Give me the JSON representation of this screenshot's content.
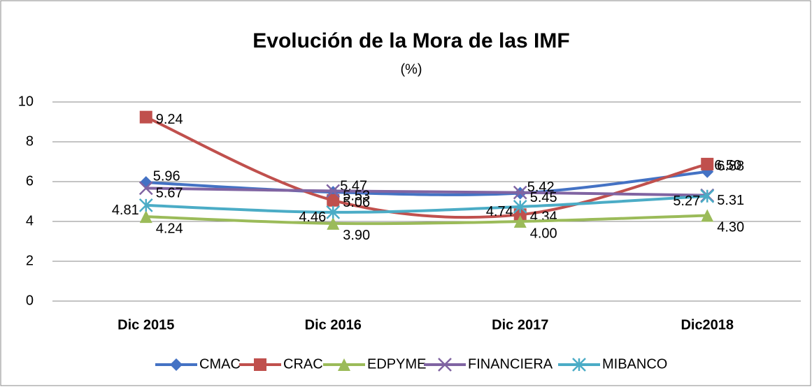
{
  "chart_data": {
    "type": "line",
    "title": "Evolución de la Mora de las IMF",
    "subtitle": "(%)",
    "categories": [
      "Dic 2015",
      "Dic 2016",
      "Dic 2017",
      "Dic2018"
    ],
    "ylim": [
      0,
      10
    ],
    "yticks": [
      0,
      2,
      4,
      6,
      8,
      10
    ],
    "grid": true,
    "legend": "bottom",
    "series": [
      {
        "name": "CMAC",
        "color": "#4472c4",
        "marker": "diamond",
        "values": [
          5.96,
          5.47,
          5.42,
          6.5
        ],
        "value_labels": [
          "5.96",
          "5.47",
          "5.42",
          "6.50"
        ]
      },
      {
        "name": "CRAC",
        "color": "#c0504d",
        "marker": "square",
        "values": [
          9.24,
          5.06,
          4.34,
          6.88
        ],
        "value_labels": [
          "9.24",
          "5.06",
          "4.34",
          "6.88"
        ]
      },
      {
        "name": "EDPYME",
        "color": "#9bbb59",
        "marker": "triangle",
        "values": [
          4.24,
          3.9,
          4.0,
          4.3
        ],
        "value_labels": [
          "4.24",
          "3.90",
          "4.00",
          "4.30"
        ]
      },
      {
        "name": "FINANCIERA",
        "color": "#8064a2",
        "marker": "x",
        "values": [
          5.67,
          5.53,
          5.45,
          5.31
        ],
        "value_labels": [
          "5.67",
          "5.53",
          "5.45",
          "5.31"
        ]
      },
      {
        "name": "MIBANCO",
        "color": "#4bacc6",
        "marker": "star",
        "values": [
          4.81,
          4.46,
          4.74,
          5.27
        ],
        "value_labels": [
          "4.81",
          "4.46",
          "4.74",
          "5.27"
        ]
      }
    ]
  }
}
